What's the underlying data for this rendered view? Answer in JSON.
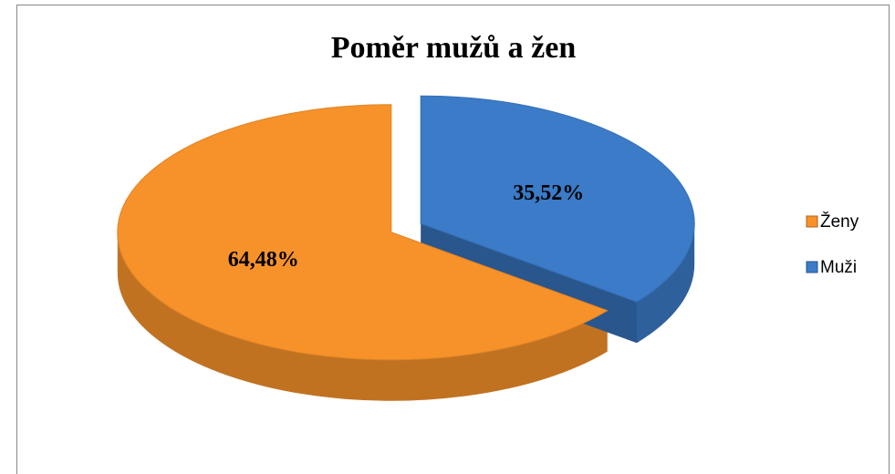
{
  "chart_data": {
    "type": "pie",
    "title": "Poměr mužů a žen",
    "categories": [
      "Ženy",
      "Muži"
    ],
    "values": [
      64.48,
      35.52
    ],
    "value_labels": [
      "64,48%",
      "35,52%"
    ],
    "colors": [
      "#f7922a",
      "#3b7bc8"
    ],
    "legend": "right"
  }
}
